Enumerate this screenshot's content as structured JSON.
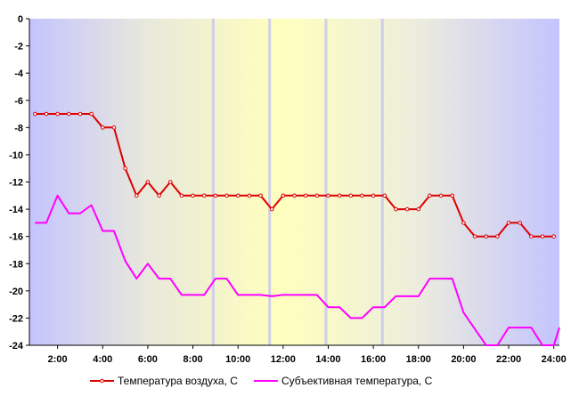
{
  "chart_data": {
    "type": "line",
    "title": "",
    "xlabel": "",
    "ylabel": "",
    "xlim": [
      0.75,
      24.25
    ],
    "ylim": [
      -24,
      0
    ],
    "y_ticks": [
      0,
      -2,
      -4,
      -6,
      -8,
      -10,
      -12,
      -14,
      -16,
      -18,
      -20,
      -22,
      -24
    ],
    "x_ticks": [
      {
        "x": 2,
        "label": "2:00"
      },
      {
        "x": 4,
        "label": "4:00"
      },
      {
        "x": 6,
        "label": "6:00"
      },
      {
        "x": 8,
        "label": "8:00"
      },
      {
        "x": 10,
        "label": "10:00"
      },
      {
        "x": 12,
        "label": "12:00"
      },
      {
        "x": 14,
        "label": "14:00"
      },
      {
        "x": 16,
        "label": "16:00"
      },
      {
        "x": 18,
        "label": "18:00"
      },
      {
        "x": 20,
        "label": "20:00"
      },
      {
        "x": 22,
        "label": "22:00"
      },
      {
        "x": 24,
        "label": "24:00"
      }
    ],
    "background_markers": [
      8.9,
      11.4,
      13.9,
      16.4
    ],
    "legend_position": "bottom",
    "series": [
      {
        "name": "Температура воздуха, С",
        "color": "#dd0000",
        "markers": true,
        "points": [
          [
            1,
            -7
          ],
          [
            1.5,
            -7
          ],
          [
            2,
            -7
          ],
          [
            2.5,
            -7
          ],
          [
            3,
            -7
          ],
          [
            3.5,
            -7
          ],
          [
            4,
            -8
          ],
          [
            4.5,
            -8
          ],
          [
            5,
            -11
          ],
          [
            5.5,
            -13
          ],
          [
            6,
            -12
          ],
          [
            6.5,
            -13
          ],
          [
            7,
            -12
          ],
          [
            7.5,
            -13
          ],
          [
            8,
            -13
          ],
          [
            8.5,
            -13
          ],
          [
            9,
            -13
          ],
          [
            9.5,
            -13
          ],
          [
            10,
            -13
          ],
          [
            10.5,
            -13
          ],
          [
            11,
            -13
          ],
          [
            11.5,
            -14
          ],
          [
            12,
            -13
          ],
          [
            12.5,
            -13
          ],
          [
            13,
            -13
          ],
          [
            13.5,
            -13
          ],
          [
            14,
            -13
          ],
          [
            14.5,
            -13
          ],
          [
            15,
            -13
          ],
          [
            15.5,
            -13
          ],
          [
            16,
            -13
          ],
          [
            16.5,
            -13
          ],
          [
            17,
            -14
          ],
          [
            17.5,
            -14
          ],
          [
            18,
            -14
          ],
          [
            18.5,
            -13
          ],
          [
            19,
            -13
          ],
          [
            19.5,
            -13
          ],
          [
            20,
            -15
          ],
          [
            20.5,
            -16
          ],
          [
            21,
            -16
          ],
          [
            21.5,
            -16
          ],
          [
            22,
            -15
          ],
          [
            22.5,
            -15
          ],
          [
            23,
            -16
          ],
          [
            23.5,
            -16
          ],
          [
            24,
            -16
          ]
        ]
      },
      {
        "name": "Субъективная температура, С",
        "color": "#ff00ff",
        "markers": false,
        "points": [
          [
            1,
            -15
          ],
          [
            1.5,
            -15
          ],
          [
            2,
            -13
          ],
          [
            2.5,
            -14.3
          ],
          [
            3,
            -14.3
          ],
          [
            3.5,
            -13.7
          ],
          [
            4,
            -15.6
          ],
          [
            4.5,
            -15.6
          ],
          [
            5,
            -17.8
          ],
          [
            5.5,
            -19.1
          ],
          [
            6,
            -18
          ],
          [
            6.5,
            -19.1
          ],
          [
            7,
            -19.1
          ],
          [
            7.5,
            -20.3
          ],
          [
            8,
            -20.3
          ],
          [
            8.5,
            -20.3
          ],
          [
            9,
            -19.1
          ],
          [
            9.5,
            -19.1
          ],
          [
            10,
            -20.3
          ],
          [
            10.5,
            -20.3
          ],
          [
            11,
            -20.3
          ],
          [
            11.5,
            -20.4
          ],
          [
            12,
            -20.3
          ],
          [
            12.5,
            -20.3
          ],
          [
            13,
            -20.3
          ],
          [
            13.5,
            -20.3
          ],
          [
            14,
            -21.2
          ],
          [
            14.5,
            -21.2
          ],
          [
            15,
            -22
          ],
          [
            15.5,
            -22
          ],
          [
            16,
            -21.2
          ],
          [
            16.5,
            -21.2
          ],
          [
            17,
            -20.4
          ],
          [
            17.5,
            -20.4
          ],
          [
            18,
            -20.4
          ],
          [
            18.5,
            -19.1
          ],
          [
            19,
            -19.1
          ],
          [
            19.5,
            -19.1
          ],
          [
            20,
            -21.6
          ],
          [
            20.5,
            -22.8
          ],
          [
            21,
            -24
          ],
          [
            21.5,
            -24
          ],
          [
            22,
            -22.7
          ],
          [
            22.5,
            -22.7
          ],
          [
            23,
            -22.7
          ],
          [
            23.5,
            -24
          ],
          [
            24,
            -24
          ],
          [
            24.5,
            -22.7
          ]
        ]
      }
    ]
  }
}
